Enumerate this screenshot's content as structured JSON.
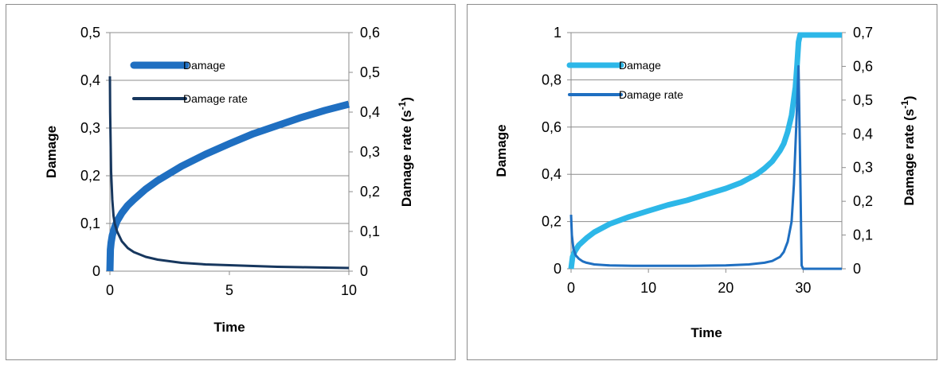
{
  "chart_data": [
    {
      "type": "line",
      "xlabel": "Time",
      "ylabel": "Damage",
      "y2label": "Damage rate (s",
      "y2label_sup": "-1",
      "y2label_end": ")",
      "xlim": [
        0,
        10
      ],
      "ylim": [
        0,
        0.5
      ],
      "y2lim": [
        0,
        0.6
      ],
      "xticks": [
        "0",
        "5",
        "10"
      ],
      "xtick_values": [
        0,
        5,
        10
      ],
      "yticks": [
        "0",
        "0,1",
        "0,2",
        "0,3",
        "0,4",
        "0,5"
      ],
      "y2ticks": [
        "0",
        "0,1",
        "0,2",
        "0,3",
        "0,4",
        "0,5",
        "0,6"
      ],
      "grid": "horizontal",
      "legend": "top-left",
      "series": [
        {
          "name": "Damage",
          "axis": "left",
          "color": "#1f6fc1",
          "x": [
            0,
            0.02,
            0.05,
            0.1,
            0.2,
            0.3,
            0.5,
            0.75,
            1,
            1.5,
            2,
            2.5,
            3,
            4,
            5,
            6,
            7,
            8,
            9,
            10
          ],
          "y": [
            0,
            0.045,
            0.06,
            0.075,
            0.092,
            0.105,
            0.122,
            0.138,
            0.15,
            0.172,
            0.19,
            0.205,
            0.22,
            0.245,
            0.267,
            0.288,
            0.305,
            0.322,
            0.337,
            0.35
          ]
        },
        {
          "name": "Damage rate",
          "axis": "right",
          "color": "#17375e",
          "x": [
            0,
            0.01,
            0.05,
            0.1,
            0.15,
            0.2,
            0.3,
            0.5,
            0.75,
            1,
            1.5,
            2,
            3,
            4,
            5,
            6,
            7,
            8,
            9,
            10
          ],
          "y": [
            0.49,
            0.4,
            0.25,
            0.18,
            0.14,
            0.12,
            0.1,
            0.075,
            0.058,
            0.048,
            0.036,
            0.029,
            0.021,
            0.017,
            0.015,
            0.013,
            0.011,
            0.01,
            0.009,
            0.008
          ]
        }
      ]
    },
    {
      "type": "line",
      "xlabel": "Time",
      "ylabel": "Damage",
      "y2label": "Damage rate (s",
      "y2label_sup": "-1",
      "y2label_end": ")",
      "xlim": [
        0,
        35
      ],
      "ylim": [
        0,
        1
      ],
      "y2lim": [
        0,
        0.7
      ],
      "xticks": [
        "0",
        "10",
        "20",
        "30"
      ],
      "xtick_values": [
        0,
        10,
        20,
        30
      ],
      "yticks": [
        "0",
        "0,2",
        "0,4",
        "0,6",
        "0,8",
        "1"
      ],
      "y2ticks": [
        "0",
        "0,1",
        "0,2",
        "0,3",
        "0,4",
        "0,5",
        "0,6",
        "0,7"
      ],
      "grid": "horizontal",
      "legend": "top-left",
      "series": [
        {
          "name": "Damage",
          "axis": "left",
          "color": "#2db7e8",
          "x": [
            0,
            0.2,
            0.5,
            1,
            2,
            3,
            5,
            7.5,
            10,
            12.5,
            15,
            17.5,
            20,
            22,
            24,
            25,
            26,
            27,
            27.5,
            28,
            28.5,
            29,
            29.2,
            29.4,
            29.6,
            30,
            32,
            35
          ],
          "y": [
            0,
            0.05,
            0.075,
            0.1,
            0.13,
            0.155,
            0.19,
            0.22,
            0.245,
            0.27,
            0.29,
            0.315,
            0.34,
            0.365,
            0.4,
            0.425,
            0.455,
            0.5,
            0.53,
            0.58,
            0.65,
            0.77,
            0.86,
            0.96,
            0.99,
            0.99,
            0.99,
            0.99
          ]
        },
        {
          "name": "Damage rate",
          "axis": "right",
          "color": "#1f6fc1",
          "x": [
            0,
            0.1,
            0.3,
            0.6,
            1,
            1.5,
            2,
            3,
            5,
            8,
            12,
            16,
            20,
            23,
            25,
            26,
            27,
            27.5,
            28,
            28.5,
            28.8,
            29.1,
            29.4,
            29.6,
            29.8,
            30,
            32,
            35
          ],
          "y": [
            0.16,
            0.1,
            0.06,
            0.04,
            0.03,
            0.022,
            0.018,
            0.013,
            0.01,
            0.009,
            0.009,
            0.009,
            0.01,
            0.013,
            0.018,
            0.023,
            0.035,
            0.05,
            0.08,
            0.14,
            0.25,
            0.42,
            0.6,
            0.33,
            0.01,
            0.0,
            0.0,
            0.0
          ]
        }
      ]
    }
  ]
}
